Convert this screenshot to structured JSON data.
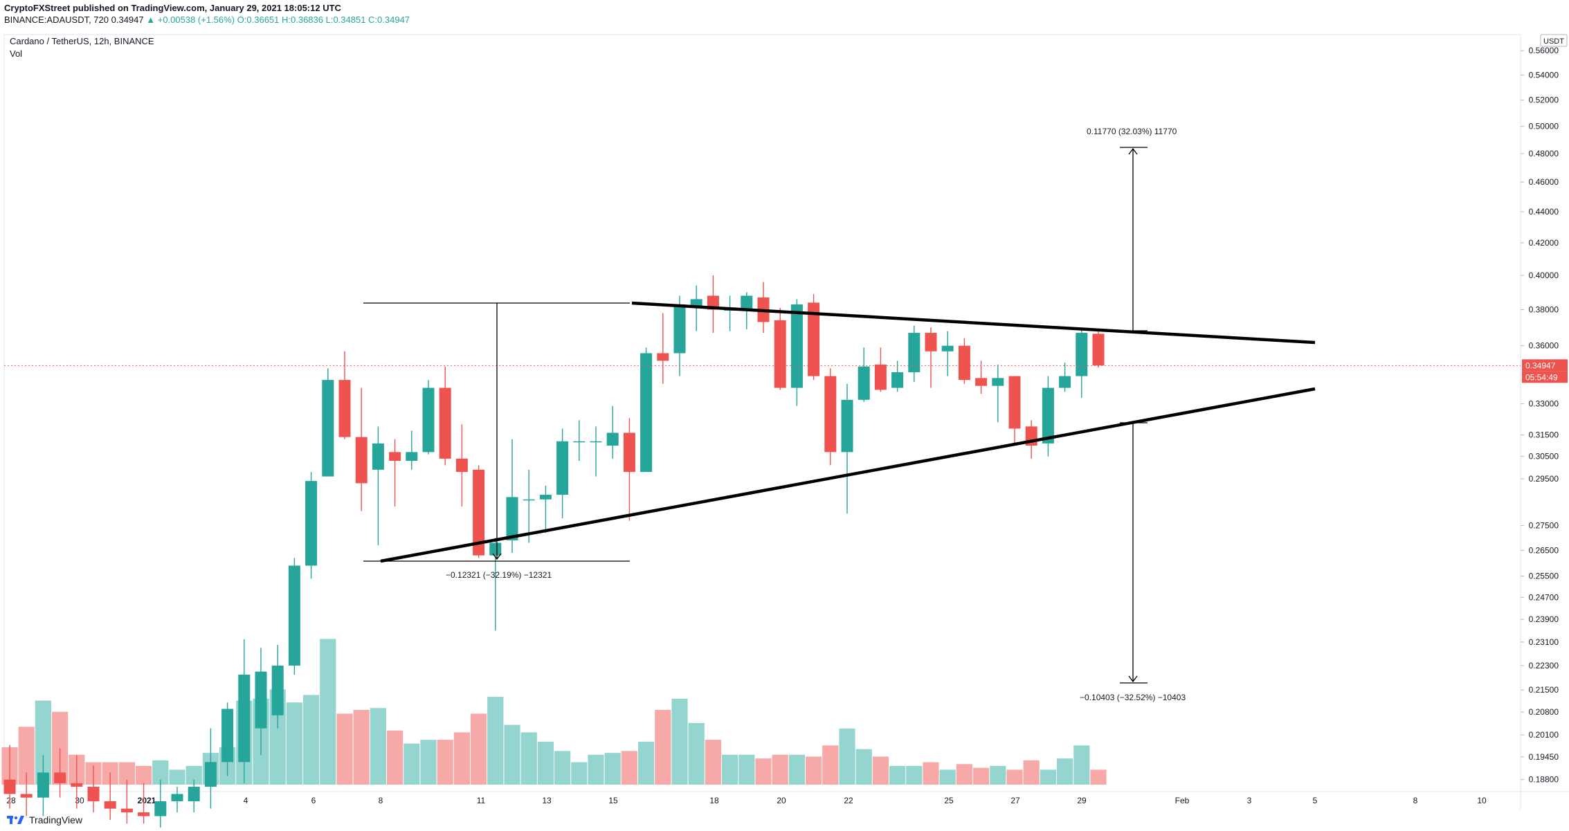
{
  "header": {
    "publisher_line": "CryptoFXStreet published on TradingView.com, January 29, 2021 18:05:12 UTC",
    "symbol": "BINANCE:ADAUSDT, 720",
    "last": "0.34947",
    "change": "▲ +0.00538 (+1.56%)",
    "ohlc": "O:0.36651 H:0.36836 L:0.34851 C:0.34947"
  },
  "legend": {
    "title": "Cardano / TetherUS, 12h, BINANCE",
    "vol": "Vol"
  },
  "footer": {
    "brand": "TradingView"
  },
  "colors": {
    "up": "#26a69a",
    "down": "#ef5350",
    "vol_up": "#94d5cf",
    "vol_down": "#f6a9a7",
    "price_line": "#ef5350"
  },
  "chart_data": {
    "type": "candlestick",
    "title": "Cardano / TetherUS, 12h, BINANCE",
    "y_axis_unit": "USDT",
    "y_scale": "log",
    "y_ticks": [
      "0.56000",
      "0.54000",
      "0.52000",
      "0.50000",
      "0.48000",
      "0.46000",
      "0.44000",
      "0.42000",
      "0.40000",
      "0.38000",
      "0.36000",
      "0.33000",
      "0.31500",
      "0.30500",
      "0.29500",
      "0.27500",
      "0.26500",
      "0.25500",
      "0.24700",
      "0.23900",
      "0.23100",
      "0.22300",
      "0.21500",
      "0.20800",
      "0.20100",
      "0.19450",
      "0.18800"
    ],
    "x_ticks": [
      "28",
      "30",
      "2021",
      "4",
      "6",
      "8",
      "11",
      "13",
      "15",
      "18",
      "20",
      "22",
      "25",
      "27",
      "29",
      "Feb",
      "3",
      "5",
      "8",
      "10"
    ],
    "current_price": {
      "value": "0.34947",
      "countdown": "05:54:49"
    },
    "candles": [
      {
        "o": 0.188,
        "h": 0.198,
        "l": 0.18,
        "c": 0.184
      },
      {
        "o": 0.184,
        "h": 0.19,
        "l": 0.178,
        "c": 0.183
      },
      {
        "o": 0.183,
        "h": 0.195,
        "l": 0.178,
        "c": 0.19
      },
      {
        "o": 0.19,
        "h": 0.197,
        "l": 0.183,
        "c": 0.187
      },
      {
        "o": 0.187,
        "h": 0.195,
        "l": 0.18,
        "c": 0.186
      },
      {
        "o": 0.186,
        "h": 0.192,
        "l": 0.179,
        "c": 0.182
      },
      {
        "o": 0.182,
        "h": 0.19,
        "l": 0.177,
        "c": 0.18
      },
      {
        "o": 0.18,
        "h": 0.188,
        "l": 0.176,
        "c": 0.179
      },
      {
        "o": 0.179,
        "h": 0.187,
        "l": 0.176,
        "c": 0.178
      },
      {
        "o": 0.178,
        "h": 0.188,
        "l": 0.175,
        "c": 0.182
      },
      {
        "o": 0.182,
        "h": 0.186,
        "l": 0.179,
        "c": 0.184
      },
      {
        "o": 0.182,
        "h": 0.188,
        "l": 0.179,
        "c": 0.186
      },
      {
        "o": 0.186,
        "h": 0.203,
        "l": 0.18,
        "c": 0.193
      },
      {
        "o": 0.193,
        "h": 0.211,
        "l": 0.189,
        "c": 0.209
      },
      {
        "o": 0.193,
        "h": 0.232,
        "l": 0.187,
        "c": 0.22
      },
      {
        "o": 0.203,
        "h": 0.229,
        "l": 0.195,
        "c": 0.221
      },
      {
        "o": 0.207,
        "h": 0.23,
        "l": 0.203,
        "c": 0.223
      },
      {
        "o": 0.223,
        "h": 0.262,
        "l": 0.22,
        "c": 0.259
      },
      {
        "o": 0.259,
        "h": 0.298,
        "l": 0.254,
        "c": 0.294
      },
      {
        "o": 0.296,
        "h": 0.348,
        "l": 0.296,
        "c": 0.342
      },
      {
        "o": 0.342,
        "h": 0.357,
        "l": 0.313,
        "c": 0.314
      },
      {
        "o": 0.314,
        "h": 0.338,
        "l": 0.281,
        "c": 0.293
      },
      {
        "o": 0.299,
        "h": 0.319,
        "l": 0.267,
        "c": 0.311
      },
      {
        "o": 0.307,
        "h": 0.313,
        "l": 0.283,
        "c": 0.303
      },
      {
        "o": 0.303,
        "h": 0.317,
        "l": 0.299,
        "c": 0.307
      },
      {
        "o": 0.307,
        "h": 0.342,
        "l": 0.306,
        "c": 0.338
      },
      {
        "o": 0.338,
        "h": 0.349,
        "l": 0.301,
        "c": 0.304
      },
      {
        "o": 0.304,
        "h": 0.32,
        "l": 0.283,
        "c": 0.298
      },
      {
        "o": 0.299,
        "h": 0.301,
        "l": 0.262,
        "c": 0.263
      },
      {
        "o": 0.263,
        "h": 0.27,
        "l": 0.235,
        "c": 0.268
      },
      {
        "o": 0.269,
        "h": 0.313,
        "l": 0.264,
        "c": 0.287
      },
      {
        "o": 0.286,
        "h": 0.299,
        "l": 0.268,
        "c": 0.286
      },
      {
        "o": 0.286,
        "h": 0.292,
        "l": 0.272,
        "c": 0.288
      },
      {
        "o": 0.288,
        "h": 0.318,
        "l": 0.278,
        "c": 0.312
      },
      {
        "o": 0.312,
        "h": 0.322,
        "l": 0.303,
        "c": 0.312
      },
      {
        "o": 0.312,
        "h": 0.319,
        "l": 0.296,
        "c": 0.312
      },
      {
        "o": 0.31,
        "h": 0.329,
        "l": 0.304,
        "c": 0.316
      },
      {
        "o": 0.316,
        "h": 0.323,
        "l": 0.277,
        "c": 0.298
      },
      {
        "o": 0.298,
        "h": 0.359,
        "l": 0.298,
        "c": 0.356
      },
      {
        "o": 0.356,
        "h": 0.378,
        "l": 0.34,
        "c": 0.352
      },
      {
        "o": 0.356,
        "h": 0.388,
        "l": 0.344,
        "c": 0.383
      },
      {
        "o": 0.382,
        "h": 0.394,
        "l": 0.368,
        "c": 0.386
      },
      {
        "o": 0.388,
        "h": 0.4,
        "l": 0.367,
        "c": 0.38
      },
      {
        "o": 0.38,
        "h": 0.388,
        "l": 0.368,
        "c": 0.38
      },
      {
        "o": 0.38,
        "h": 0.39,
        "l": 0.369,
        "c": 0.388
      },
      {
        "o": 0.387,
        "h": 0.396,
        "l": 0.367,
        "c": 0.373
      },
      {
        "o": 0.374,
        "h": 0.381,
        "l": 0.337,
        "c": 0.338
      },
      {
        "o": 0.338,
        "h": 0.386,
        "l": 0.329,
        "c": 0.383
      },
      {
        "o": 0.384,
        "h": 0.389,
        "l": 0.342,
        "c": 0.344
      },
      {
        "o": 0.344,
        "h": 0.348,
        "l": 0.301,
        "c": 0.307
      },
      {
        "o": 0.307,
        "h": 0.34,
        "l": 0.28,
        "c": 0.332
      },
      {
        "o": 0.332,
        "h": 0.359,
        "l": 0.331,
        "c": 0.349
      },
      {
        "o": 0.35,
        "h": 0.359,
        "l": 0.336,
        "c": 0.337
      },
      {
        "o": 0.338,
        "h": 0.352,
        "l": 0.336,
        "c": 0.346
      },
      {
        "o": 0.346,
        "h": 0.371,
        "l": 0.341,
        "c": 0.367
      },
      {
        "o": 0.367,
        "h": 0.37,
        "l": 0.338,
        "c": 0.357
      },
      {
        "o": 0.357,
        "h": 0.368,
        "l": 0.344,
        "c": 0.36
      },
      {
        "o": 0.36,
        "h": 0.364,
        "l": 0.34,
        "c": 0.342
      },
      {
        "o": 0.343,
        "h": 0.352,
        "l": 0.335,
        "c": 0.339
      },
      {
        "o": 0.339,
        "h": 0.35,
        "l": 0.321,
        "c": 0.343
      },
      {
        "o": 0.344,
        "h": 0.344,
        "l": 0.311,
        "c": 0.318
      },
      {
        "o": 0.319,
        "h": 0.322,
        "l": 0.304,
        "c": 0.31
      },
      {
        "o": 0.311,
        "h": 0.344,
        "l": 0.305,
        "c": 0.338
      },
      {
        "o": 0.338,
        "h": 0.351,
        "l": 0.336,
        "c": 0.344
      },
      {
        "o": 0.344,
        "h": 0.37,
        "l": 0.333,
        "c": 0.367
      },
      {
        "o": 0.3665,
        "h": 0.3684,
        "l": 0.3485,
        "c": 0.3495
      }
    ],
    "volume_rel": [
      0.2,
      0.31,
      0.45,
      0.39,
      0.16,
      0.12,
      0.12,
      0.12,
      0.1,
      0.13,
      0.08,
      0.1,
      0.17,
      0.2,
      0.45,
      0.46,
      0.51,
      0.44,
      0.48,
      0.78,
      0.38,
      0.4,
      0.41,
      0.29,
      0.22,
      0.24,
      0.24,
      0.28,
      0.38,
      0.47,
      0.32,
      0.28,
      0.23,
      0.18,
      0.12,
      0.16,
      0.17,
      0.18,
      0.23,
      0.4,
      0.46,
      0.33,
      0.24,
      0.16,
      0.16,
      0.14,
      0.16,
      0.16,
      0.15,
      0.21,
      0.3,
      0.19,
      0.15,
      0.1,
      0.1,
      0.12,
      0.08,
      0.11,
      0.09,
      0.1,
      0.08,
      0.13,
      0.08,
      0.14,
      0.21,
      0.08
    ],
    "annotations": {
      "lower_measure": "−0.12321 (−32.19%) −12321",
      "upper_measure": "0.11770 (32.03%) 11770",
      "down_measure": "−0.10403 (−32.52%) −10403"
    }
  }
}
